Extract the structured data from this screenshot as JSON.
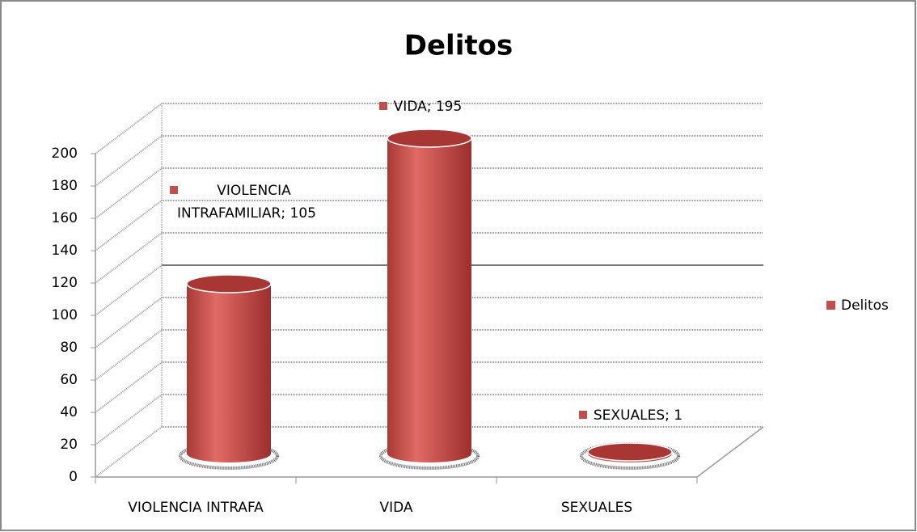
{
  "chart_data": {
    "type": "bar3d",
    "title": "Delitos",
    "categories": [
      "VIOLENCIA INTRAFA",
      "VIDA",
      "SEXUALES"
    ],
    "series": [
      {
        "name": "Delitos",
        "color": "#c0504d",
        "values": [
          105,
          195,
          1
        ],
        "value_labels": [
          "VIOLENCIA INTRAFAMILIAR; 105",
          "VIDA; 195",
          "SEXUALES; 1"
        ]
      }
    ],
    "ylim": [
      0,
      200
    ],
    "yticks": [
      0,
      20,
      40,
      60,
      80,
      100,
      120,
      140,
      160,
      180,
      200
    ],
    "grid": true,
    "legend": "right"
  }
}
